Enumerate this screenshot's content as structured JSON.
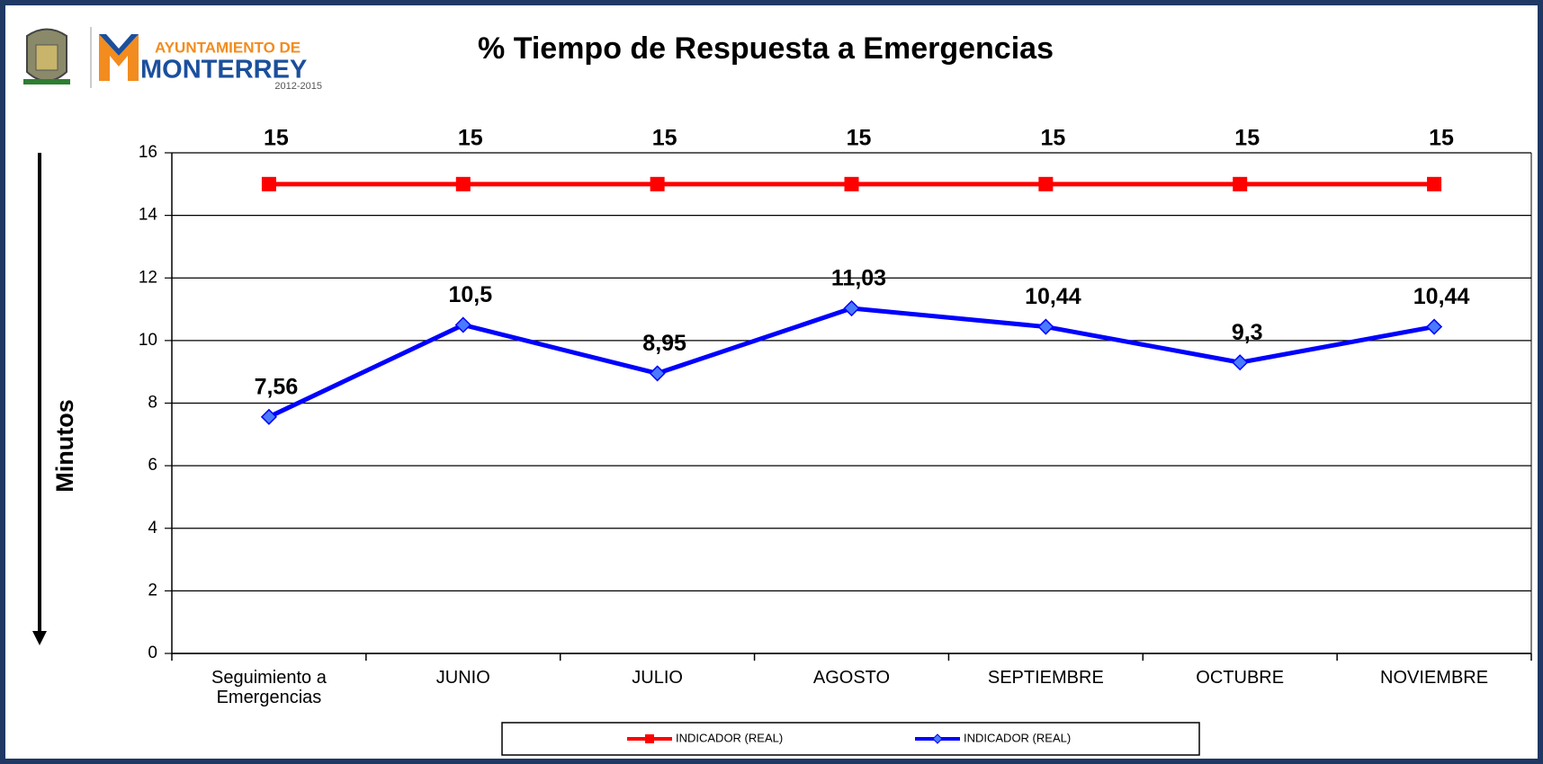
{
  "logo": {
    "line1": "AYUNTAMIENTO DE",
    "line2": "MONTERREY",
    "years": "2012-2015"
  },
  "chart_data": {
    "type": "line",
    "title": "% Tiempo de Respuesta a Emergencias",
    "y_label": "Minutos",
    "categories": [
      "Seguimiento a Emergencias",
      "JUNIO",
      "JULIO",
      "AGOSTO",
      "SEPTIEMBRE",
      "OCTUBRE",
      "NOVIEMBRE"
    ],
    "series": [
      {
        "name": "INDICADOR (REAL)",
        "color": "#ff0000",
        "marker": "square",
        "values": [
          15,
          15,
          15,
          15,
          15,
          15,
          15
        ]
      },
      {
        "name": "INDICADOR (REAL)",
        "color": "#0000ff",
        "marker": "diamond",
        "values": [
          7.56,
          10.5,
          8.95,
          11.03,
          10.44,
          9.3,
          10.44
        ],
        "value_labels": [
          "7,56",
          "10,5",
          "8,95",
          "11,03",
          "10,44",
          "9,3",
          "10,44"
        ]
      }
    ],
    "ylim": [
      0,
      16
    ],
    "yticks": [
      0,
      2,
      4,
      6,
      8,
      10,
      12,
      14,
      16
    ],
    "grid": true,
    "legend": "bottom"
  }
}
